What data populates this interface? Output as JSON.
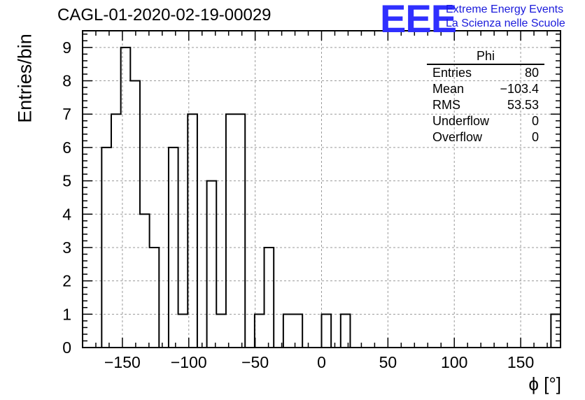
{
  "title": "CAGL-01-2020-02-19-00029",
  "logo": {
    "mark": "EEE",
    "line1": "Extreme Energy Events",
    "line2": "La Scienza nelle Scuole",
    "color": "#2f2fff"
  },
  "stats": {
    "title": "Phi",
    "rows": [
      {
        "label": "Entries",
        "value": "80"
      },
      {
        "label": "Mean",
        "value": "−103.4"
      },
      {
        "label": "RMS",
        "value": "53.53"
      },
      {
        "label": "Underflow",
        "value": "0"
      },
      {
        "label": "Overflow",
        "value": "0"
      }
    ]
  },
  "chart_data": {
    "type": "histogram",
    "xlabel": "ϕ [°]",
    "ylabel": "Entries/bin",
    "xlim": [
      -180,
      180
    ],
    "ylim": [
      0,
      9.5
    ],
    "grid": true,
    "x_ticks": [
      -150,
      -100,
      -50,
      0,
      50,
      100,
      150
    ],
    "x_tick_labels": [
      "−150",
      "−100",
      "−50",
      "0",
      "50",
      "100",
      "150"
    ],
    "y_ticks": [
      0,
      1,
      2,
      3,
      4,
      5,
      6,
      7,
      8,
      9
    ],
    "bin_width": 7.2,
    "bin_start": -180,
    "values": [
      0,
      0,
      6,
      7,
      9,
      8,
      4,
      3,
      0,
      6,
      1,
      7,
      0,
      5,
      1,
      7,
      7,
      0,
      1,
      3,
      0,
      1,
      1,
      0,
      0,
      1,
      0,
      1,
      0,
      0,
      0,
      0,
      0,
      0,
      0,
      0,
      0,
      0,
      0,
      0,
      0,
      0,
      0,
      0,
      0,
      0,
      0,
      0,
      0,
      1
    ]
  }
}
